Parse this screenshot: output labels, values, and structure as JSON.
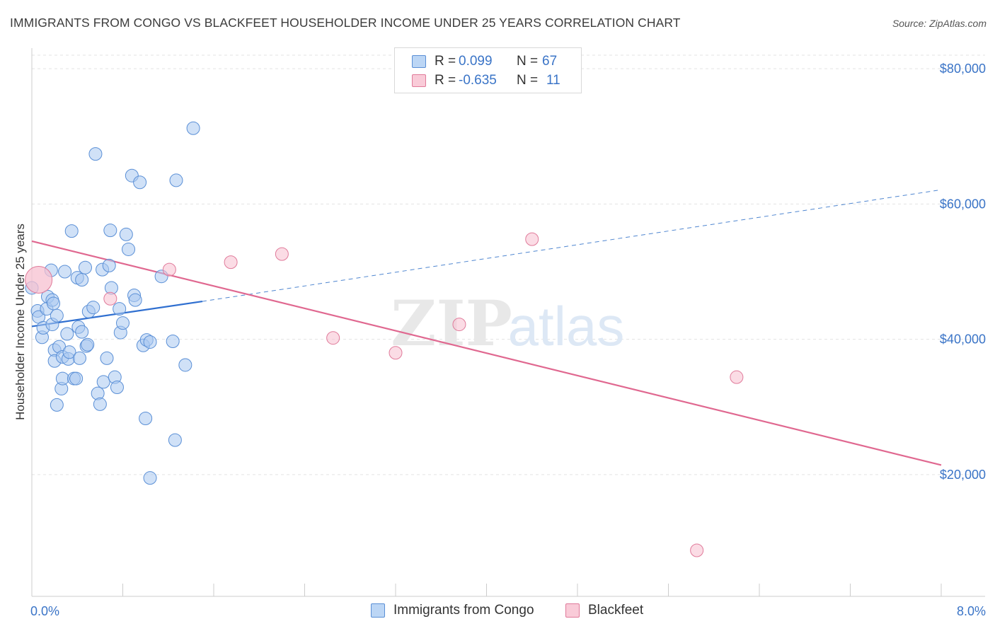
{
  "title": "IMMIGRANTS FROM CONGO VS BLACKFEET HOUSEHOLDER INCOME UNDER 25 YEARS CORRELATION CHART",
  "source": "Source: ZipAtlas.com",
  "watermark": {
    "zip": "ZIP",
    "atlas": "atlas"
  },
  "legend": {
    "rows": [
      {
        "r_label": "R =",
        "r_value": "0.099",
        "n_label": "N =",
        "n_value": "67",
        "color": "#a9c8f0",
        "border": "#5a8fd6"
      },
      {
        "r_label": "R =",
        "r_value": "-0.635",
        "n_label": "N =",
        "n_value": "11",
        "color": "#f7c0d0",
        "border": "#e07a9a"
      }
    ]
  },
  "bottom_legend": [
    {
      "label": "Immigrants from Congo",
      "color": "#bcd6f5",
      "border": "#5a8fd6"
    },
    {
      "label": "Blackfeet",
      "color": "#f9cbd8",
      "border": "#e07a9a"
    }
  ],
  "chart_data": {
    "type": "scatter",
    "title": "IMMIGRANTS FROM CONGO VS BLACKFEET HOUSEHOLDER INCOME UNDER 25 YEARS CORRELATION CHART",
    "xlabel": "",
    "ylabel": "Householder Income Under 25 years",
    "xlim": [
      0.0,
      8.0
    ],
    "ylim": [
      2000,
      82000
    ],
    "x_tick_labels": [
      "0.0%",
      "8.0%"
    ],
    "y_ticks": [
      20000,
      40000,
      60000,
      80000
    ],
    "y_tick_labels": [
      "$20,000",
      "$40,000",
      "$60,000",
      "$80,000"
    ],
    "grid": true,
    "series": [
      {
        "name": "Immigrants from Congo",
        "color": "#a9c8f0",
        "edge": "#5a8fd6",
        "points": [
          [
            0.0,
            47.6
          ],
          [
            0.05,
            44.2
          ],
          [
            0.06,
            43.3
          ],
          [
            0.09,
            40.3
          ],
          [
            0.1,
            41.7
          ],
          [
            0.13,
            44.5
          ],
          [
            0.14,
            46.3
          ],
          [
            0.17,
            50.2
          ],
          [
            0.18,
            42.2
          ],
          [
            0.18,
            45.8
          ],
          [
            0.19,
            45.3
          ],
          [
            0.2,
            38.4
          ],
          [
            0.2,
            36.8
          ],
          [
            0.22,
            30.3
          ],
          [
            0.22,
            43.5
          ],
          [
            0.24,
            38.9
          ],
          [
            0.26,
            32.7
          ],
          [
            0.27,
            37.4
          ],
          [
            0.27,
            34.2
          ],
          [
            0.29,
            50.0
          ],
          [
            0.31,
            40.8
          ],
          [
            0.32,
            37.1
          ],
          [
            0.33,
            38.1
          ],
          [
            0.35,
            56.0
          ],
          [
            0.37,
            34.2
          ],
          [
            0.39,
            34.2
          ],
          [
            0.4,
            49.1
          ],
          [
            0.41,
            41.8
          ],
          [
            0.42,
            37.2
          ],
          [
            0.44,
            48.8
          ],
          [
            0.44,
            41.1
          ],
          [
            0.47,
            50.6
          ],
          [
            0.48,
            39.0
          ],
          [
            0.49,
            39.2
          ],
          [
            0.5,
            44.1
          ],
          [
            0.54,
            44.7
          ],
          [
            0.56,
            67.4
          ],
          [
            0.58,
            32.0
          ],
          [
            0.6,
            30.4
          ],
          [
            0.62,
            50.3
          ],
          [
            0.63,
            33.7
          ],
          [
            0.66,
            37.2
          ],
          [
            0.68,
            50.9
          ],
          [
            0.69,
            56.1
          ],
          [
            0.7,
            47.6
          ],
          [
            0.73,
            34.4
          ],
          [
            0.75,
            32.9
          ],
          [
            0.77,
            44.5
          ],
          [
            0.78,
            41.0
          ],
          [
            0.8,
            42.4
          ],
          [
            0.83,
            55.5
          ],
          [
            0.85,
            53.3
          ],
          [
            0.88,
            64.2
          ],
          [
            0.9,
            46.5
          ],
          [
            0.91,
            45.8
          ],
          [
            0.95,
            63.2
          ],
          [
            0.98,
            39.1
          ],
          [
            1.0,
            28.3
          ],
          [
            1.01,
            39.9
          ],
          [
            1.04,
            39.6
          ],
          [
            1.04,
            19.5
          ],
          [
            1.14,
            49.3
          ],
          [
            1.24,
            39.7
          ],
          [
            1.26,
            25.1
          ],
          [
            1.27,
            63.5
          ],
          [
            1.35,
            36.2
          ],
          [
            1.42,
            71.2
          ]
        ],
        "trend": {
          "x": [
            0.0,
            1.5
          ],
          "y": [
            41.9,
            45.6
          ],
          "extended_to": [
            8.0,
            62.1
          ]
        }
      },
      {
        "name": "Blackfeet",
        "color": "#f7c0d0",
        "edge": "#e07a9a",
        "points": [
          [
            0.06,
            48.8
          ],
          [
            0.69,
            46.0
          ],
          [
            1.21,
            50.3
          ],
          [
            1.75,
            51.4
          ],
          [
            2.2,
            52.6
          ],
          [
            2.65,
            40.2
          ],
          [
            3.2,
            38.0
          ],
          [
            3.76,
            42.2
          ],
          [
            4.4,
            54.8
          ],
          [
            5.85,
            8.8
          ],
          [
            6.2,
            34.4
          ]
        ],
        "trend": {
          "x": [
            0.0,
            8.0
          ],
          "y": [
            54.5,
            21.4
          ]
        }
      }
    ],
    "y_units": "thousands of dollars"
  }
}
